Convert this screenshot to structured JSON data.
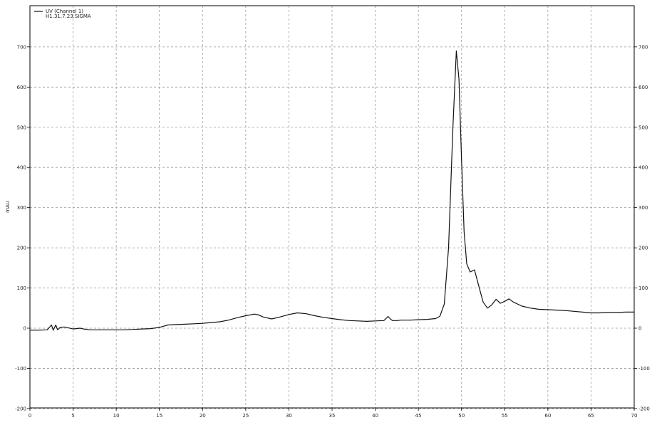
{
  "chart_data": {
    "type": "line",
    "title": "",
    "xlabel": "",
    "ylabel": "mAU",
    "xlim": [
      0,
      70
    ],
    "ylim": [
      -200,
      800
    ],
    "x_ticks": [
      0,
      5,
      10,
      15,
      20,
      25,
      30,
      35,
      40,
      45,
      50,
      55,
      60,
      65,
      70
    ],
    "x_tick_labels": [
      "0",
      "5",
      "10",
      "15",
      "20",
      "25",
      "30",
      "35",
      "40",
      "45",
      "50",
      "55",
      "60",
      "65",
      "70"
    ],
    "y_ticks": [
      -200,
      -100,
      0,
      100,
      200,
      300,
      400,
      500,
      600,
      700
    ],
    "y_tick_labels": [
      "-200",
      "-100",
      "0",
      "100",
      "200",
      "300",
      "400",
      "500",
      "600",
      "700"
    ],
    "grid": true,
    "legend": {
      "position": "top-left",
      "entries": [
        "UV (Channel 1)",
        "H1.31.7.23.SIGMA"
      ]
    },
    "series": [
      {
        "name": "UV (Channel 1)",
        "x": [
          0,
          1,
          2,
          2.5,
          2.7,
          3.0,
          3.2,
          3.5,
          4.0,
          5.0,
          5.8,
          6.2,
          7,
          8,
          9,
          10,
          11,
          12,
          13,
          14,
          15,
          15.5,
          16,
          17,
          18,
          19,
          20,
          21,
          22,
          23,
          24,
          25,
          26,
          26.5,
          27,
          28,
          29,
          30,
          31,
          32,
          33,
          34,
          35,
          36,
          37,
          38,
          39,
          40,
          41,
          41.5,
          41.8,
          42,
          42.5,
          43,
          44,
          45,
          46,
          47,
          47.5,
          48,
          48.5,
          49,
          49.4,
          49.7,
          50,
          50.3,
          50.6,
          51,
          51.5,
          52,
          52.5,
          53,
          53.5,
          54,
          54.5,
          55,
          55.5,
          56,
          57,
          58,
          59,
          60,
          61,
          62,
          63,
          64,
          65,
          66,
          67,
          68,
          69,
          70
        ],
        "y": [
          -5,
          -5,
          -4,
          8,
          -5,
          8,
          -4,
          2,
          3,
          -2,
          0,
          -2,
          -4,
          -4,
          -4,
          -4,
          -4,
          -3,
          -2,
          -1,
          2,
          5,
          8,
          9,
          10,
          11,
          12,
          14,
          16,
          20,
          26,
          31,
          35,
          33,
          28,
          23,
          28,
          34,
          38,
          36,
          31,
          27,
          24,
          21,
          19,
          18,
          17,
          18,
          19,
          29,
          22,
          19,
          19,
          20,
          20,
          21,
          22,
          24,
          30,
          60,
          200,
          500,
          690,
          620,
          420,
          240,
          160,
          140,
          145,
          105,
          65,
          50,
          58,
          72,
          62,
          67,
          73,
          65,
          55,
          50,
          47,
          46,
          45,
          44,
          42,
          40,
          38,
          38,
          39,
          39,
          40,
          40
        ]
      }
    ]
  }
}
